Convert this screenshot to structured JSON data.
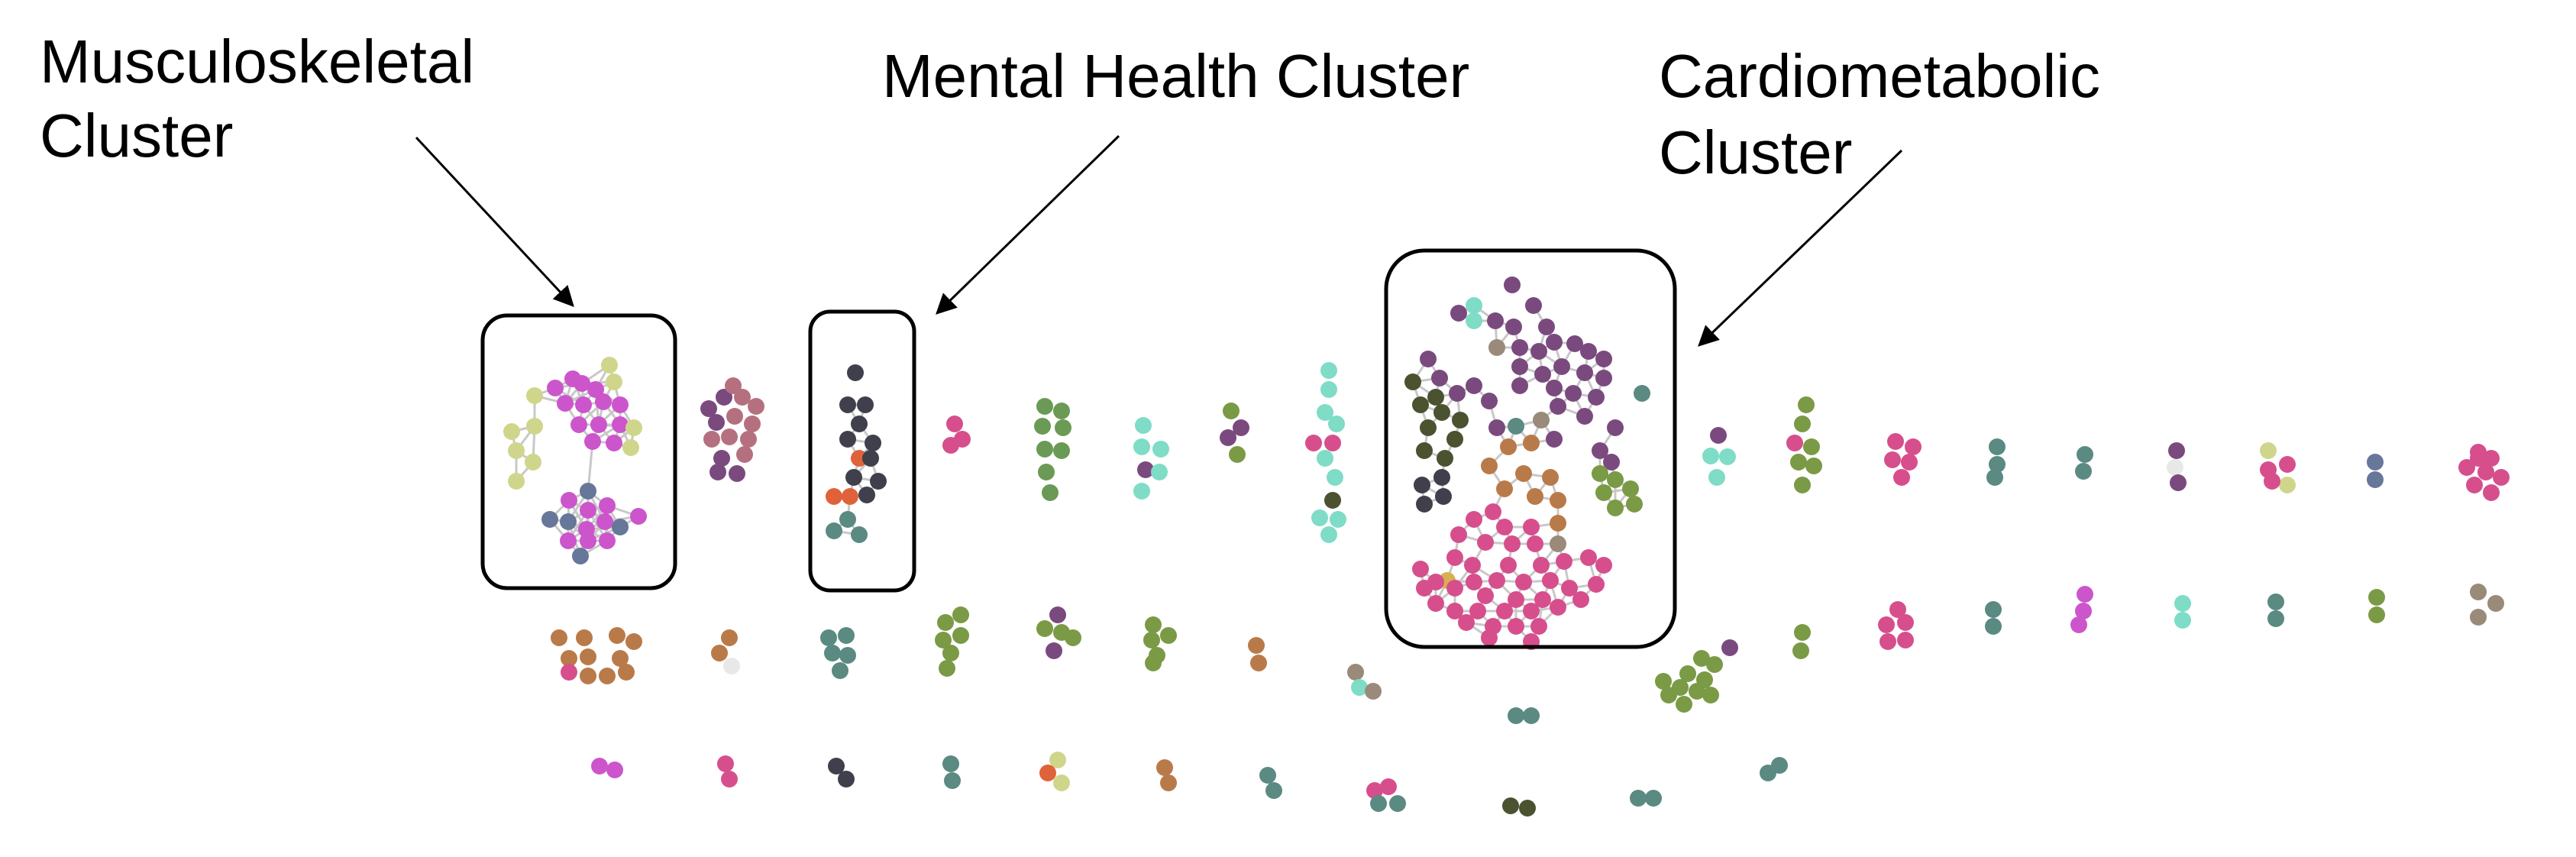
{
  "labels": {
    "musculoskeletal_line1": "Musculoskeletal",
    "musculoskeletal_line2": "Cluster",
    "mental_health": "Mental Health Cluster",
    "cardiometabolic_line1": "Cardiometabolic",
    "cardiometabolic_line2": "Cluster"
  },
  "colors": {
    "edge": "#c8c8c8",
    "box_stroke": "#000000",
    "yellow_green": "#cfd68b",
    "magenta": "#cc55cc",
    "slate": "#66779a",
    "rose": "#b5707f",
    "plum": "#7a4a7e",
    "charcoal": "#403f4c",
    "orange_red": "#e0623a",
    "teal": "#5a8a82",
    "pink": "#d64f8c",
    "green": "#6a9a55",
    "aqua": "#7fdcc6",
    "olive_dark": "#4a5230",
    "moss": "#7a9a45",
    "brown": "#b97a4a",
    "taupe": "#9a8a7a",
    "gold": "#d8b050",
    "light_gray": "#e8e8e8"
  }
}
